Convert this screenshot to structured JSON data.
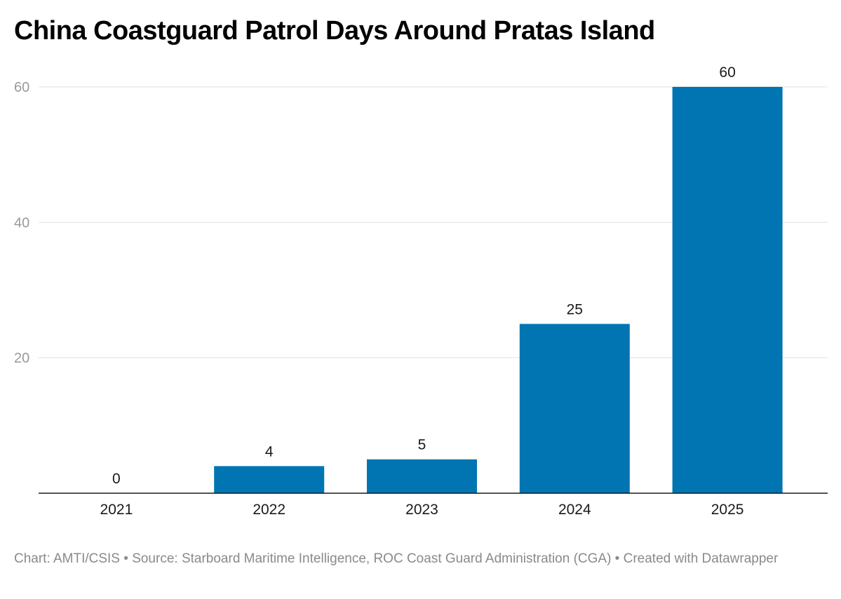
{
  "chart_data": {
    "type": "bar",
    "title": "China Coastguard Patrol Days Around Pratas Island",
    "categories": [
      "2021",
      "2022",
      "2023",
      "2024",
      "2025"
    ],
    "values": [
      0,
      4,
      5,
      25,
      60
    ],
    "ylim": [
      0,
      60
    ],
    "yticks": [
      20,
      40,
      60
    ],
    "bar_color": "#0175b2",
    "grid": true,
    "xlabel": "",
    "ylabel": ""
  },
  "footer": "Chart: AMTI/CSIS • Source: Starboard Maritime Intelligence, ROC Coast Guard Administration (CGA) • Created with Datawrapper"
}
